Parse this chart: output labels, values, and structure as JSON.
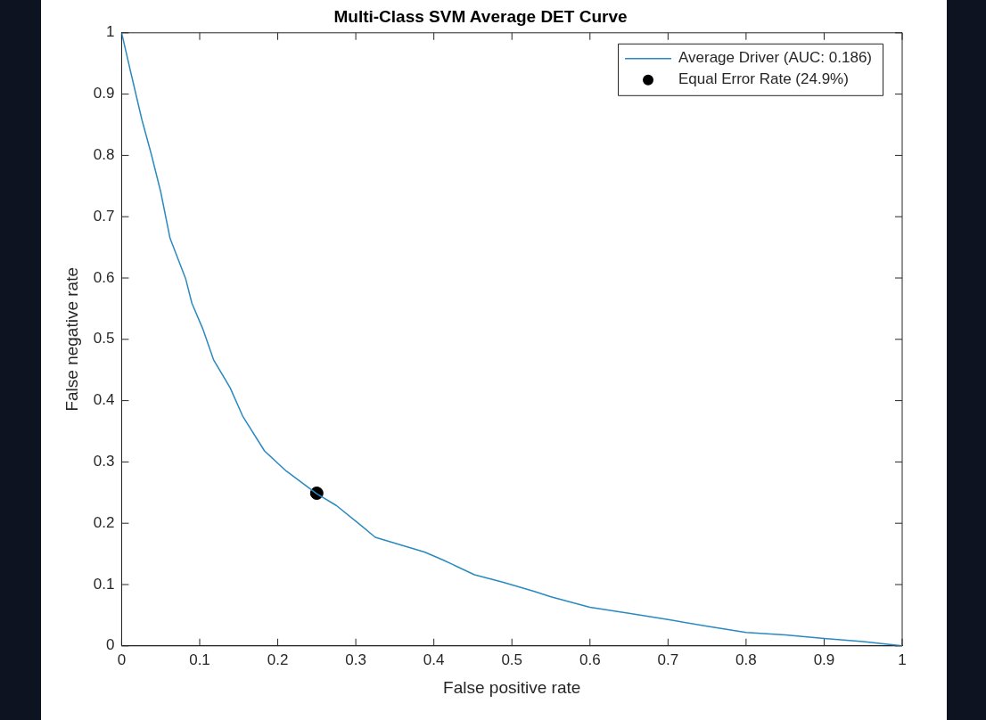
{
  "chart_data": {
    "type": "line",
    "title": "Multi-Class SVM Average DET Curve",
    "xlabel": "False positive rate",
    "ylabel": "False negative rate",
    "xlim": [
      0,
      1
    ],
    "ylim": [
      0,
      1
    ],
    "xticks": [
      0,
      0.1,
      0.2,
      0.3,
      0.4,
      0.5,
      0.6,
      0.7,
      0.8,
      0.9,
      1
    ],
    "yticks": [
      0,
      0.1,
      0.2,
      0.3,
      0.4,
      0.5,
      0.6,
      0.7,
      0.8,
      0.9,
      1
    ],
    "grid": false,
    "legend": "top right",
    "marker": "none",
    "line_style": "solid",
    "series": [
      {
        "name": "Average Driver (AUC: 0.186)",
        "color": "#2a8ac0",
        "x": [
          0,
          0.012,
          0.026,
          0.038,
          0.05,
          0.062,
          0.082,
          0.09,
          0.104,
          0.118,
          0.139,
          0.155,
          0.183,
          0.211,
          0.25,
          0.275,
          0.307,
          0.325,
          0.367,
          0.388,
          0.412,
          0.452,
          0.488,
          0.528,
          0.55,
          0.6,
          0.65,
          0.7,
          0.75,
          0.8,
          0.85,
          0.9,
          0.95,
          1
        ],
        "values": [
          1,
          0.934,
          0.858,
          0.802,
          0.741,
          0.665,
          0.599,
          0.559,
          0.517,
          0.466,
          0.421,
          0.375,
          0.318,
          0.285,
          0.248,
          0.229,
          0.196,
          0.177,
          0.161,
          0.153,
          0.14,
          0.116,
          0.104,
          0.089,
          0.08,
          0.063,
          0.053,
          0.043,
          0.032,
          0.022,
          0.018,
          0.012,
          0.007,
          0
        ]
      },
      {
        "name": "Equal Error Rate (24.9%)",
        "type": "scatter",
        "marker": "circle",
        "color": "#000000",
        "x": [
          0.25
        ],
        "values": [
          0.249
        ]
      }
    ]
  }
}
